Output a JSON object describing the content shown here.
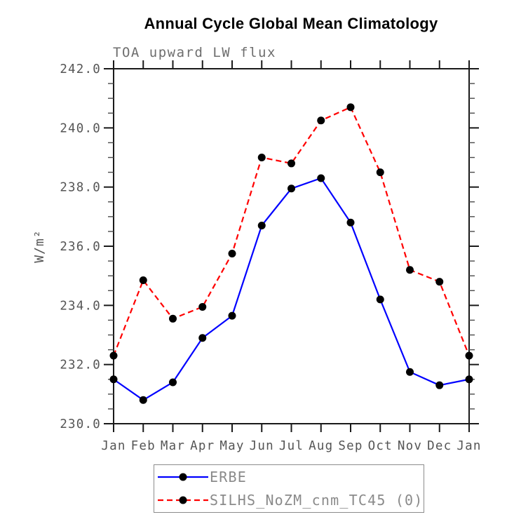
{
  "header": {
    "title": "Annual Cycle Global Mean Climatology",
    "subtitle": "TOA upward LW flux"
  },
  "chart_data": {
    "type": "line",
    "categories": [
      "Jan",
      "Feb",
      "Mar",
      "Apr",
      "May",
      "Jun",
      "Jul",
      "Aug",
      "Sep",
      "Oct",
      "Nov",
      "Dec",
      "Jan"
    ],
    "series": [
      {
        "name": "ERBE",
        "color": "#0000ff",
        "line_style": "solid",
        "marker": "filled-circle",
        "marker_color": "#000000",
        "values": [
          231.5,
          230.8,
          231.4,
          232.9,
          233.65,
          236.7,
          237.95,
          238.3,
          236.8,
          234.2,
          231.75,
          231.3,
          231.5
        ]
      },
      {
        "name": "SILHS_NoZM_cnm_TC45 (0)",
        "color": "#ff0000",
        "line_style": "dashed",
        "marker": "filled-circle",
        "marker_color": "#000000",
        "values": [
          232.3,
          234.85,
          233.55,
          233.95,
          235.75,
          239.0,
          238.8,
          240.25,
          240.7,
          238.5,
          235.2,
          234.8,
          232.3
        ]
      }
    ],
    "title": "Annual Cycle Global Mean Climatology",
    "subtitle": "TOA upward LW flux",
    "xlabel": "",
    "ylabel": "W/m²",
    "ylim": [
      230.0,
      242.0
    ],
    "ytick_major_interval": 2.0,
    "ytick_minor_interval": 0.5,
    "ytick_labels": [
      "230.0",
      "232.0",
      "234.0",
      "236.0",
      "238.0",
      "240.0",
      "242.0"
    ],
    "grid": false,
    "legend_position": "bottom-center"
  },
  "style": {
    "axis_color": "#1a1a1a",
    "minor_tick_color": "#4a4a4a",
    "tick_label_color": "#555555",
    "subtitle_color": "#6e6e6e",
    "legend_text_color": "#8a8a8a",
    "legend_border_color": "#8c8c8c",
    "marker_color": "#000000",
    "erbe_line_color": "#0000ff",
    "silhs_line_color": "#ff0000"
  }
}
